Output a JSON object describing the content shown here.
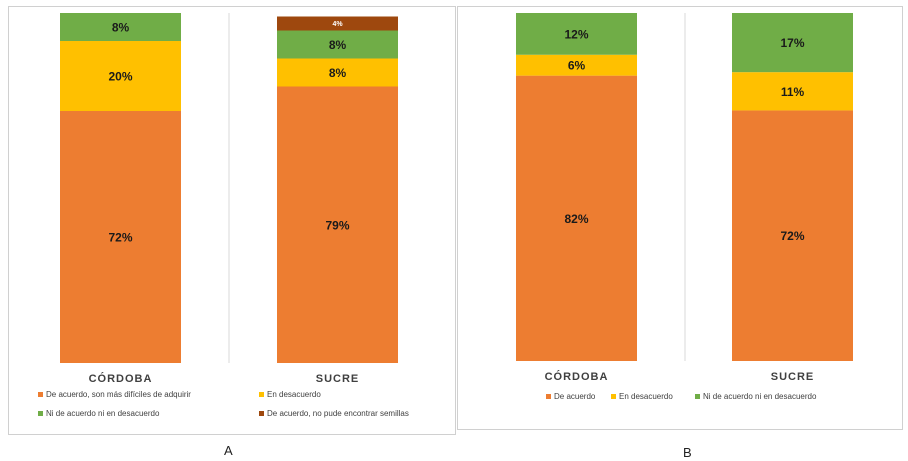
{
  "panels": [
    {
      "letter": "A",
      "chart_data": {
        "type": "bar",
        "stacked": true,
        "normalized": true,
        "categories": [
          "CÓRDOBA",
          "SUCRE"
        ],
        "series": [
          {
            "name": "De acuerdo, son más difíciles de adquirir",
            "color": "#ED7D31",
            "values": [
              72,
              79
            ],
            "labels": [
              "72%",
              "79%"
            ]
          },
          {
            "name": "En desacuerdo",
            "color": "#FFC000",
            "values": [
              20,
              8
            ],
            "labels": [
              "20%",
              "8%"
            ]
          },
          {
            "name": "Ni de acuerdo ni en desacuerdo",
            "color": "#70AD47",
            "values": [
              8,
              8
            ],
            "labels": [
              "8%",
              "8%"
            ]
          },
          {
            "name": "De acuerdo, no pude encontrar semillas",
            "color": "#9E480E",
            "values": [
              0,
              4
            ],
            "labels": [
              "",
              "4%"
            ]
          }
        ],
        "ylim": [
          0,
          100
        ],
        "legend_position": "bottom",
        "grid": false
      }
    },
    {
      "letter": "B",
      "chart_data": {
        "type": "bar",
        "stacked": true,
        "normalized": true,
        "categories": [
          "CÓRDOBA",
          "SUCRE"
        ],
        "series": [
          {
            "name": "De acuerdo",
            "color": "#ED7D31",
            "values": [
              82,
              72
            ],
            "labels": [
              "82%",
              "72%"
            ]
          },
          {
            "name": "En desacuerdo",
            "color": "#FFC000",
            "values": [
              6,
              11
            ],
            "labels": [
              "6%",
              "11%"
            ]
          },
          {
            "name": "Ni de acuerdo ni en desacuerdo",
            "color": "#70AD47",
            "values": [
              12,
              17
            ],
            "labels": [
              "12%",
              "17%"
            ]
          }
        ],
        "ylim": [
          0,
          100
        ],
        "legend_position": "bottom",
        "grid": false
      }
    }
  ]
}
